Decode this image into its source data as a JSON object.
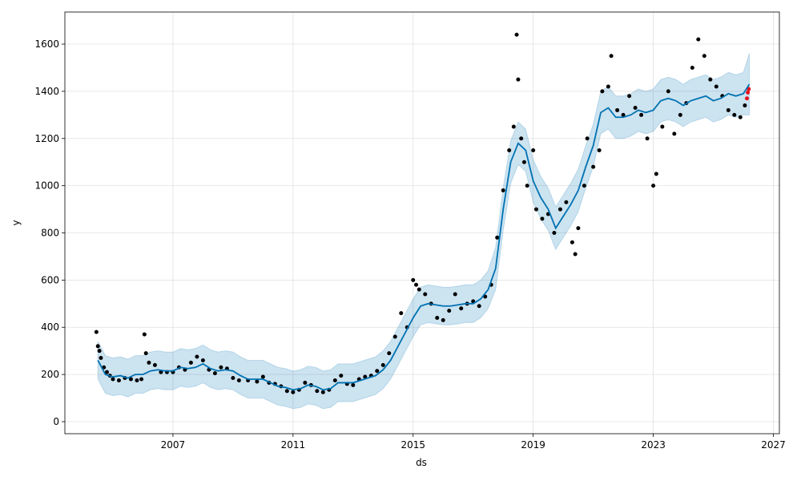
{
  "chart_data": {
    "type": "line",
    "xlabel": "ds",
    "ylabel": "y",
    "xlim": [
      2003.4,
      2027.2
    ],
    "ylim": [
      -51,
      1736
    ],
    "xticks": [
      2007,
      2011,
      2015,
      2019,
      2023,
      2027
    ],
    "yticks": [
      0,
      200,
      400,
      600,
      800,
      1000,
      1200,
      1400,
      1600
    ],
    "grid": true,
    "x": [
      2004.5,
      2004.75,
      2005,
      2005.25,
      2005.5,
      2005.75,
      2006,
      2006.25,
      2006.5,
      2006.75,
      2007,
      2007.25,
      2007.5,
      2007.75,
      2008,
      2008.25,
      2008.5,
      2008.75,
      2009,
      2009.25,
      2009.5,
      2009.75,
      2010,
      2010.25,
      2010.5,
      2010.75,
      2011,
      2011.25,
      2011.5,
      2011.75,
      2012,
      2012.25,
      2012.5,
      2012.75,
      2013,
      2013.25,
      2013.5,
      2013.75,
      2014,
      2014.25,
      2014.5,
      2014.75,
      2015,
      2015.25,
      2015.5,
      2015.75,
      2016,
      2016.25,
      2016.5,
      2016.75,
      2017,
      2017.25,
      2017.5,
      2017.75,
      2018,
      2018.25,
      2018.5,
      2018.75,
      2019,
      2019.25,
      2019.5,
      2019.75,
      2020,
      2020.25,
      2020.5,
      2020.75,
      2021,
      2021.25,
      2021.5,
      2021.75,
      2022,
      2022.25,
      2022.5,
      2022.75,
      2023,
      2023.25,
      2023.5,
      2023.75,
      2024,
      2024.25,
      2024.5,
      2024.75,
      2025,
      2025.25,
      2025.5,
      2025.75,
      2026,
      2026.2
    ],
    "band": {
      "color": "#0072b2",
      "upper": [
        340,
        280,
        270,
        275,
        265,
        280,
        280,
        295,
        300,
        295,
        295,
        310,
        305,
        310,
        325,
        305,
        295,
        300,
        295,
        275,
        260,
        260,
        260,
        245,
        230,
        225,
        215,
        220,
        235,
        230,
        215,
        220,
        245,
        245,
        245,
        255,
        265,
        275,
        300,
        340,
        400,
        460,
        520,
        570,
        580,
        575,
        570,
        570,
        575,
        580,
        580,
        600,
        640,
        740,
        990,
        1190,
        1270,
        1240,
        1110,
        1040,
        990,
        910,
        960,
        1010,
        1070,
        1170,
        1260,
        1400,
        1420,
        1380,
        1380,
        1390,
        1410,
        1400,
        1410,
        1450,
        1460,
        1450,
        1430,
        1450,
        1460,
        1470,
        1450,
        1460,
        1480,
        1470,
        1480,
        1560
      ],
      "lower": [
        180,
        120,
        110,
        115,
        105,
        120,
        120,
        135,
        140,
        135,
        135,
        150,
        145,
        150,
        165,
        145,
        135,
        140,
        135,
        115,
        100,
        100,
        100,
        85,
        70,
        65,
        55,
        60,
        75,
        70,
        55,
        60,
        85,
        85,
        85,
        95,
        105,
        115,
        140,
        180,
        240,
        300,
        360,
        410,
        420,
        415,
        410,
        410,
        415,
        420,
        420,
        440,
        480,
        560,
        810,
        1010,
        1090,
        1060,
        930,
        860,
        810,
        730,
        780,
        830,
        890,
        990,
        1080,
        1220,
        1240,
        1200,
        1200,
        1210,
        1230,
        1220,
        1230,
        1270,
        1280,
        1270,
        1250,
        1270,
        1280,
        1290,
        1270,
        1280,
        1300,
        1290,
        1300,
        1300
      ]
    },
    "series": [
      {
        "color": "#0072b2",
        "values": [
          260,
          200,
          190,
          195,
          185,
          200,
          200,
          215,
          220,
          215,
          215,
          230,
          225,
          230,
          245,
          225,
          215,
          220,
          215,
          195,
          180,
          180,
          180,
          165,
          150,
          145,
          135,
          140,
          155,
          150,
          135,
          140,
          165,
          165,
          165,
          175,
          185,
          195,
          220,
          260,
          320,
          380,
          440,
          490,
          500,
          495,
          490,
          490,
          495,
          500,
          500,
          520,
          560,
          650,
          900,
          1100,
          1180,
          1150,
          1020,
          950,
          900,
          820,
          870,
          920,
          980,
          1080,
          1170,
          1310,
          1330,
          1290,
          1290,
          1300,
          1320,
          1310,
          1320,
          1360,
          1370,
          1360,
          1340,
          1360,
          1370,
          1380,
          1360,
          1370,
          1390,
          1380,
          1390,
          1430
        ]
      }
    ],
    "scatter": [
      {
        "color": "#000000",
        "x": [
          2004.45,
          2004.5,
          2004.55,
          2004.6,
          2004.7,
          2004.8,
          2004.9,
          2005,
          2005.2,
          2005.4,
          2005.6,
          2005.8,
          2005.95,
          2006.05,
          2006.1,
          2006.2,
          2006.4,
          2006.6,
          2006.8,
          2007,
          2007.2,
          2007.4,
          2007.6,
          2007.8,
          2008,
          2008.2,
          2008.4,
          2008.6,
          2008.8,
          2009,
          2009.2,
          2009.5,
          2009.8,
          2010,
          2010.2,
          2010.4,
          2010.6,
          2010.8,
          2011,
          2011.2,
          2011.4,
          2011.6,
          2011.8,
          2012,
          2012.2,
          2012.4,
          2012.6,
          2012.8,
          2013,
          2013.2,
          2013.4,
          2013.6,
          2013.8,
          2014,
          2014.2,
          2014.4,
          2014.6,
          2014.8,
          2015,
          2015.1,
          2015.2,
          2015.4,
          2015.6,
          2015.8,
          2016,
          2016.2,
          2016.4,
          2016.6,
          2016.8,
          2017,
          2017.2,
          2017.4,
          2017.6,
          2017.8,
          2018,
          2018.2,
          2018.35,
          2018.45,
          2018.5,
          2018.6,
          2018.7,
          2018.8,
          2019,
          2019.1,
          2019.3,
          2019.5,
          2019.7,
          2019.9,
          2020.1,
          2020.3,
          2020.4,
          2020.5,
          2020.7,
          2020.8,
          2021,
          2021.2,
          2021.3,
          2021.5,
          2021.6,
          2021.8,
          2022,
          2022.2,
          2022.4,
          2022.6,
          2022.8,
          2023,
          2023.1,
          2023.3,
          2023.5,
          2023.7,
          2023.9,
          2024.1,
          2024.3,
          2024.5,
          2024.7,
          2024.9,
          2025.1,
          2025.3,
          2025.5,
          2025.7,
          2025.9,
          2026.05
        ],
        "values": [
          380,
          320,
          300,
          270,
          230,
          210,
          195,
          180,
          175,
          185,
          180,
          175,
          180,
          370,
          290,
          250,
          240,
          210,
          210,
          210,
          230,
          220,
          250,
          275,
          260,
          220,
          205,
          230,
          225,
          185,
          175,
          175,
          170,
          190,
          165,
          160,
          150,
          130,
          125,
          135,
          165,
          155,
          130,
          125,
          135,
          175,
          195,
          160,
          155,
          180,
          190,
          195,
          215,
          240,
          290,
          360,
          460,
          400,
          600,
          580,
          560,
          540,
          500,
          440,
          430,
          470,
          540,
          480,
          500,
          510,
          490,
          530,
          580,
          780,
          980,
          1150,
          1250,
          1640,
          1450,
          1200,
          1100,
          1000,
          1150,
          900,
          860,
          880,
          800,
          900,
          930,
          760,
          710,
          820,
          1000,
          1200,
          1080,
          1150,
          1400,
          1420,
          1550,
          1320,
          1300,
          1380,
          1330,
          1300,
          1200,
          1000,
          1050,
          1250,
          1400,
          1220,
          1300,
          1350,
          1500,
          1620,
          1550,
          1450,
          1420,
          1380,
          1320,
          1300,
          1290,
          1340
        ]
      },
      {
        "color": "#e8101c",
        "x": [
          2026.12,
          2026.15,
          2026.18
        ],
        "values": [
          1370,
          1395,
          1410
        ]
      }
    ]
  }
}
